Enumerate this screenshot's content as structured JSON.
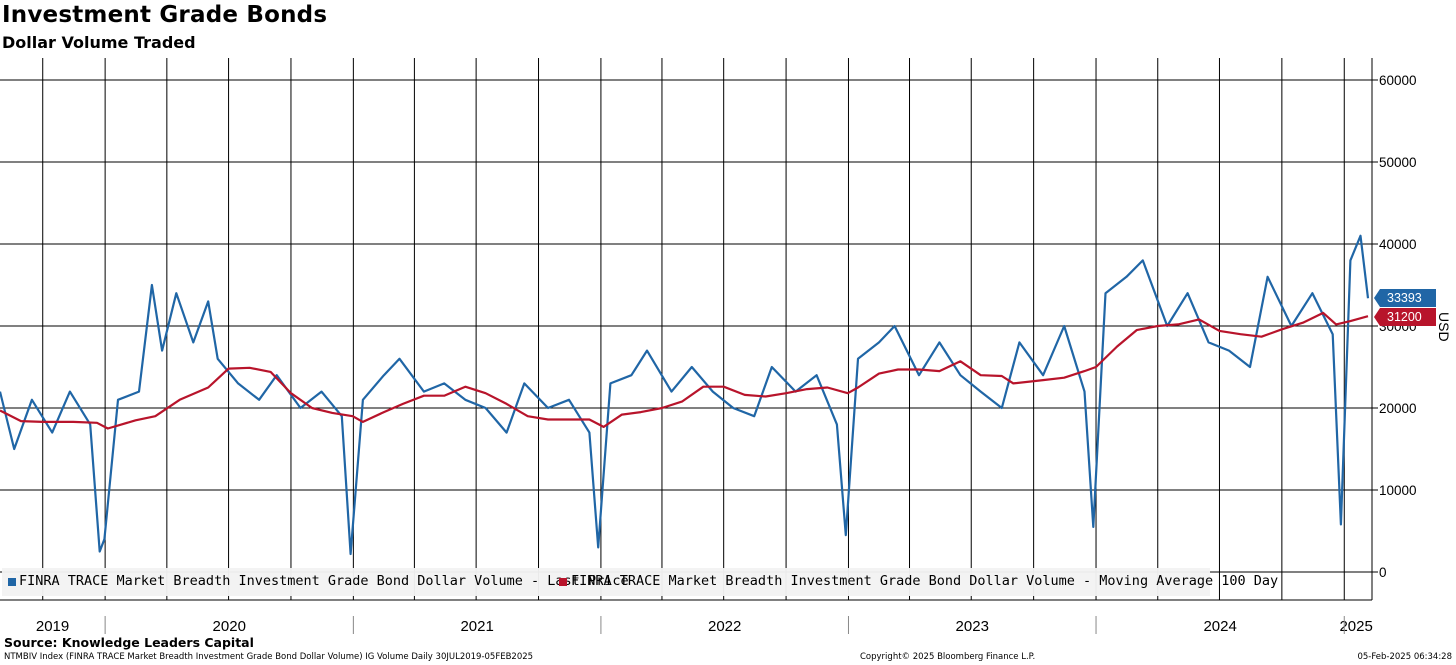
{
  "title": "Investment Grade Bonds",
  "subtitle": "Dollar Volume Traded",
  "source": "Source: Knowledge Leaders Capital",
  "footer": {
    "left": "NTMBIV Index (FINRA TRACE Market Breadth Investment Grade Bond Dollar Volume) IG Volume  Daily 30JUL2019-05FEB2025",
    "center": "Copyright© 2025 Bloomberg Finance L.P.",
    "right": "05-Feb-2025 06:34:28"
  },
  "colors": {
    "series_last": "#2066a6",
    "series_ma": "#b8142b",
    "grid": "#000000",
    "background": "#ffffff"
  },
  "chart_data": {
    "type": "line",
    "title": "Investment Grade Bonds",
    "subtitle": "Dollar Volume Traded",
    "ylabel": "USD",
    "ylim": [
      0,
      60000
    ],
    "yticks": [
      0,
      10000,
      20000,
      30000,
      40000,
      50000,
      60000
    ],
    "y_axis_position": "right",
    "x_range": [
      "2019-07-30",
      "2025-02-05"
    ],
    "x_year_labels": [
      "2019",
      "2020",
      "2021",
      "2022",
      "2023",
      "2024",
      "2025"
    ],
    "grid": true,
    "legend_position": "bottom-left",
    "series": [
      {
        "name": "FINRA TRACE Market Breadth Investment Grade Bond Dollar Volume - Last Price",
        "color": "#2066a6",
        "last_value": "33393",
        "points": [
          [
            "2019-07-30",
            22000
          ],
          [
            "2019-08-20",
            15000
          ],
          [
            "2019-09-15",
            21000
          ],
          [
            "2019-10-15",
            17000
          ],
          [
            "2019-11-10",
            22000
          ],
          [
            "2019-12-10",
            18000
          ],
          [
            "2019-12-24",
            2500
          ],
          [
            "2019-12-31",
            4000
          ],
          [
            "2020-01-20",
            21000
          ],
          [
            "2020-02-20",
            22000
          ],
          [
            "2020-03-10",
            35000
          ],
          [
            "2020-03-25",
            27000
          ],
          [
            "2020-04-15",
            34000
          ],
          [
            "2020-05-10",
            28000
          ],
          [
            "2020-06-01",
            33000
          ],
          [
            "2020-06-15",
            26000
          ],
          [
            "2020-07-15",
            23000
          ],
          [
            "2020-08-15",
            21000
          ],
          [
            "2020-09-10",
            24000
          ],
          [
            "2020-10-15",
            20000
          ],
          [
            "2020-11-15",
            22000
          ],
          [
            "2020-12-15",
            19000
          ],
          [
            "2020-12-28",
            2200
          ],
          [
            "2021-01-15",
            21000
          ],
          [
            "2021-02-15",
            24000
          ],
          [
            "2021-03-10",
            26000
          ],
          [
            "2021-04-15",
            22000
          ],
          [
            "2021-05-15",
            23000
          ],
          [
            "2021-06-15",
            21000
          ],
          [
            "2021-07-15",
            20000
          ],
          [
            "2021-08-15",
            17000
          ],
          [
            "2021-09-10",
            23000
          ],
          [
            "2021-10-15",
            20000
          ],
          [
            "2021-11-15",
            21000
          ],
          [
            "2021-12-15",
            17000
          ],
          [
            "2021-12-28",
            3000
          ],
          [
            "2022-01-15",
            23000
          ],
          [
            "2022-02-15",
            24000
          ],
          [
            "2022-03-10",
            27000
          ],
          [
            "2022-04-15",
            22000
          ],
          [
            "2022-05-15",
            25000
          ],
          [
            "2022-06-15",
            22000
          ],
          [
            "2022-07-15",
            20000
          ],
          [
            "2022-08-15",
            19000
          ],
          [
            "2022-09-10",
            25000
          ],
          [
            "2022-10-15",
            22000
          ],
          [
            "2022-11-15",
            24000
          ],
          [
            "2022-12-15",
            18000
          ],
          [
            "2022-12-28",
            4500
          ],
          [
            "2023-01-15",
            26000
          ],
          [
            "2023-02-15",
            28000
          ],
          [
            "2023-03-10",
            30000
          ],
          [
            "2023-04-15",
            24000
          ],
          [
            "2023-05-15",
            28000
          ],
          [
            "2023-06-15",
            24000
          ],
          [
            "2023-07-15",
            22000
          ],
          [
            "2023-08-15",
            20000
          ],
          [
            "2023-09-10",
            28000
          ],
          [
            "2023-10-15",
            24000
          ],
          [
            "2023-11-15",
            30000
          ],
          [
            "2023-12-15",
            22000
          ],
          [
            "2023-12-28",
            5500
          ],
          [
            "2024-01-15",
            34000
          ],
          [
            "2024-02-15",
            36000
          ],
          [
            "2024-03-10",
            38000
          ],
          [
            "2024-04-15",
            30000
          ],
          [
            "2024-05-15",
            34000
          ],
          [
            "2024-06-15",
            28000
          ],
          [
            "2024-07-15",
            27000
          ],
          [
            "2024-08-15",
            25000
          ],
          [
            "2024-09-10",
            36000
          ],
          [
            "2024-10-15",
            30000
          ],
          [
            "2024-11-15",
            34000
          ],
          [
            "2024-12-15",
            29000
          ],
          [
            "2024-12-27",
            5800
          ],
          [
            "2025-01-10",
            38000
          ],
          [
            "2025-01-25",
            41000
          ],
          [
            "2025-02-05",
            33393
          ]
        ]
      },
      {
        "name": "FINRA TRACE Market Breadth Investment Grade Bond Dollar Volume - Moving Average 100 Day",
        "color": "#b8142b",
        "last_value": "31200",
        "points": [
          [
            "2019-07-30",
            19700
          ],
          [
            "2019-08-30",
            18400
          ],
          [
            "2019-10-01",
            18300
          ],
          [
            "2019-11-15",
            18300
          ],
          [
            "2019-12-20",
            18200
          ],
          [
            "2020-01-05",
            17500
          ],
          [
            "2020-02-15",
            18500
          ],
          [
            "2020-03-15",
            19000
          ],
          [
            "2020-04-20",
            21000
          ],
          [
            "2020-06-01",
            22500
          ],
          [
            "2020-07-01",
            24800
          ],
          [
            "2020-08-01",
            24900
          ],
          [
            "2020-09-01",
            24400
          ],
          [
            "2020-10-01",
            21800
          ],
          [
            "2020-11-01",
            20000
          ],
          [
            "2020-12-01",
            19400
          ],
          [
            "2020-12-31",
            19000
          ],
          [
            "2021-01-15",
            18300
          ],
          [
            "2021-02-15",
            19500
          ],
          [
            "2021-03-15",
            20500
          ],
          [
            "2021-04-15",
            21500
          ],
          [
            "2021-05-15",
            21500
          ],
          [
            "2021-06-15",
            22600
          ],
          [
            "2021-07-15",
            21800
          ],
          [
            "2021-08-15",
            20500
          ],
          [
            "2021-09-15",
            19000
          ],
          [
            "2021-10-15",
            18600
          ],
          [
            "2021-11-15",
            18600
          ],
          [
            "2021-12-15",
            18600
          ],
          [
            "2022-01-05",
            17700
          ],
          [
            "2022-02-01",
            19200
          ],
          [
            "2022-03-01",
            19500
          ],
          [
            "2022-04-01",
            20000
          ],
          [
            "2022-05-01",
            20800
          ],
          [
            "2022-06-01",
            22600
          ],
          [
            "2022-07-01",
            22600
          ],
          [
            "2022-08-01",
            21600
          ],
          [
            "2022-09-01",
            21400
          ],
          [
            "2022-10-01",
            21800
          ],
          [
            "2022-11-01",
            22300
          ],
          [
            "2022-12-01",
            22500
          ],
          [
            "2022-12-31",
            21800
          ],
          [
            "2023-01-15",
            22500
          ],
          [
            "2023-02-15",
            24200
          ],
          [
            "2023-03-15",
            24700
          ],
          [
            "2023-04-15",
            24700
          ],
          [
            "2023-05-15",
            24500
          ],
          [
            "2023-06-15",
            25700
          ],
          [
            "2023-07-15",
            24000
          ],
          [
            "2023-08-15",
            23900
          ],
          [
            "2023-09-01",
            23000
          ],
          [
            "2023-10-15",
            23400
          ],
          [
            "2023-11-15",
            23700
          ],
          [
            "2023-12-15",
            24500
          ],
          [
            "2024-01-01",
            25000
          ],
          [
            "2024-02-01",
            27500
          ],
          [
            "2024-03-01",
            29500
          ],
          [
            "2024-04-01",
            30000
          ],
          [
            "2024-05-01",
            30200
          ],
          [
            "2024-06-01",
            30800
          ],
          [
            "2024-07-01",
            29400
          ],
          [
            "2024-08-01",
            29000
          ],
          [
            "2024-09-01",
            28700
          ],
          [
            "2024-10-01",
            29600
          ],
          [
            "2024-11-01",
            30400
          ],
          [
            "2024-12-01",
            31600
          ],
          [
            "2024-12-20",
            30200
          ],
          [
            "2025-01-10",
            30600
          ],
          [
            "2025-02-05",
            31200
          ]
        ]
      }
    ]
  }
}
